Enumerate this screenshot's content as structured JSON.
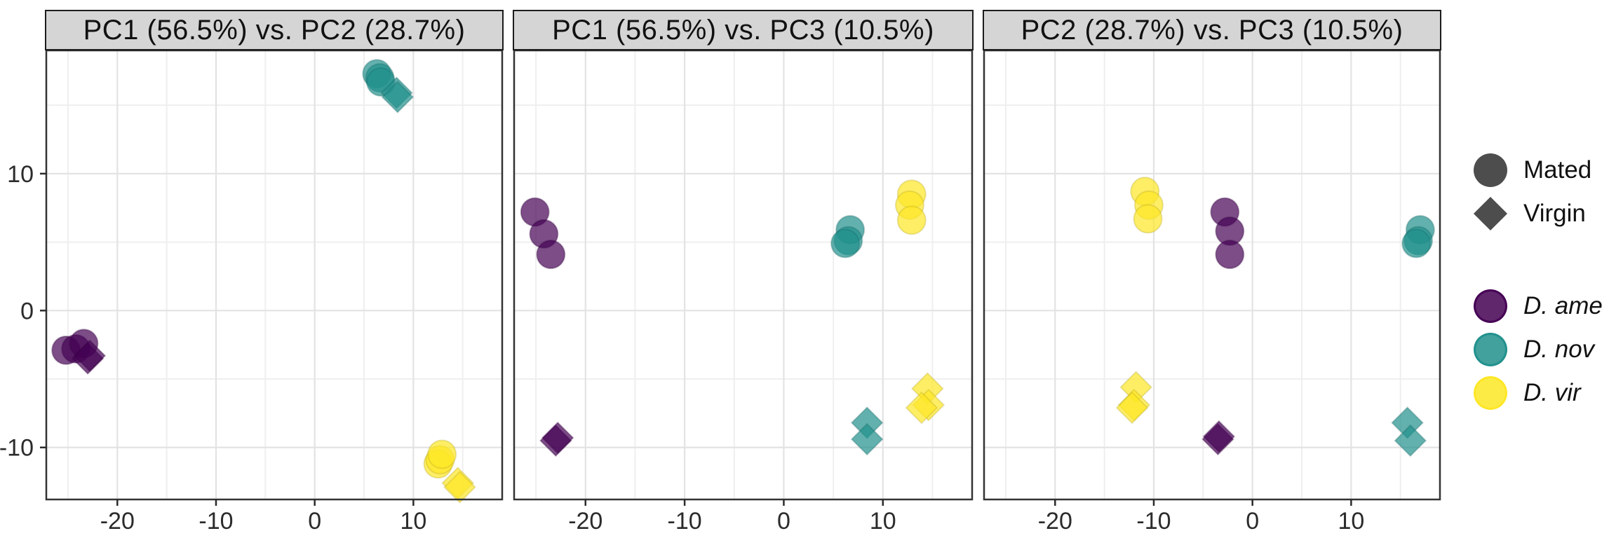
{
  "colors": {
    "ame": "#440154",
    "nov": "#21908C",
    "vir": "#FDE725",
    "legend_shape_gray": "#4d4d4d",
    "strip_background": "#d5d5d5",
    "gridline_major": "#e3e3e3",
    "gridline_minor": "#efefef",
    "panel_border": "#333333",
    "axis_text": "#2b2b2b"
  },
  "legend": {
    "shape_group": [
      {
        "label": "Mated",
        "shape": "circle"
      },
      {
        "label": "Virgin",
        "shape": "diamond"
      }
    ],
    "species_group": [
      {
        "label": "D. ame",
        "color_key": "ame"
      },
      {
        "label": "D. nov",
        "color_key": "nov"
      },
      {
        "label": "D. vir",
        "color_key": "vir"
      }
    ]
  },
  "chart_data": {
    "type": "scatter",
    "facetted": true,
    "grid": "major and minor, light gray on white",
    "legend_position": "right",
    "point_opacity": 0.7,
    "shape_by": "state (Mated = circle, Virgin = diamond)",
    "color_by": "species (viridis: D. ame purple, D. nov teal, D. vir yellow)",
    "x_ticks": [
      -20,
      -10,
      0,
      10
    ],
    "y_ticks": [
      -10,
      0,
      10
    ],
    "xlim": [
      -27.2,
      19.0
    ],
    "ylim": [
      -13.8,
      19.0
    ],
    "panels": [
      {
        "title": "PC1 (56.5%) vs. PC2 (28.7%)",
        "x_axis": "PC1",
        "y_axis": "PC2",
        "groups": [
          {
            "species": "D. ame",
            "state": "Mated",
            "shape": "circle",
            "color_key": "ame",
            "points": [
              [
                -25.2,
                -2.9
              ],
              [
                -24.2,
                -2.8
              ],
              [
                -23.4,
                -2.4
              ]
            ]
          },
          {
            "species": "D. ame",
            "state": "Virgin",
            "shape": "diamond",
            "color_key": "ame",
            "points": [
              [
                -23.0,
                -3.5
              ],
              [
                -22.8,
                -3.3
              ]
            ]
          },
          {
            "species": "D. nov",
            "state": "Mated",
            "shape": "circle",
            "color_key": "nov",
            "points": [
              [
                6.3,
                17.3
              ],
              [
                6.6,
                17.0
              ],
              [
                6.7,
                16.7
              ]
            ]
          },
          {
            "species": "D. nov",
            "state": "Virgin",
            "shape": "diamond",
            "color_key": "nov",
            "points": [
              [
                8.3,
                15.9
              ],
              [
                8.4,
                15.6
              ]
            ]
          },
          {
            "species": "D. vir",
            "state": "Mated",
            "shape": "circle",
            "color_key": "vir",
            "points": [
              [
                12.5,
                -11.2
              ],
              [
                12.7,
                -10.9
              ],
              [
                12.9,
                -10.5
              ]
            ]
          },
          {
            "species": "D. vir",
            "state": "Virgin",
            "shape": "diamond",
            "color_key": "vir",
            "points": [
              [
                14.5,
                -12.6
              ],
              [
                14.7,
                -12.9
              ]
            ]
          }
        ]
      },
      {
        "title": "PC1 (56.5%) vs. PC3 (10.5%)",
        "x_axis": "PC1",
        "y_axis": "PC3",
        "groups": [
          {
            "species": "D. ame",
            "state": "Mated",
            "shape": "circle",
            "color_key": "ame",
            "points": [
              [
                -25.1,
                7.2
              ],
              [
                -24.2,
                5.6
              ],
              [
                -23.5,
                4.1
              ]
            ]
          },
          {
            "species": "D. ame",
            "state": "Virgin",
            "shape": "diamond",
            "color_key": "ame",
            "points": [
              [
                -23.0,
                -9.5
              ],
              [
                -22.8,
                -9.3
              ]
            ]
          },
          {
            "species": "D. nov",
            "state": "Mated",
            "shape": "circle",
            "color_key": "nov",
            "points": [
              [
                6.7,
                5.9
              ],
              [
                6.5,
                5.1
              ],
              [
                6.2,
                4.9
              ]
            ]
          },
          {
            "species": "D. nov",
            "state": "Virgin",
            "shape": "diamond",
            "color_key": "nov",
            "points": [
              [
                8.4,
                -8.2
              ],
              [
                8.4,
                -9.4
              ]
            ]
          },
          {
            "species": "D. vir",
            "state": "Mated",
            "shape": "circle",
            "color_key": "vir",
            "points": [
              [
                12.9,
                8.5
              ],
              [
                12.7,
                7.7
              ],
              [
                12.9,
                6.6
              ]
            ]
          },
          {
            "species": "D. vir",
            "state": "Virgin",
            "shape": "diamond",
            "color_key": "vir",
            "points": [
              [
                14.5,
                -5.7
              ],
              [
                14.6,
                -6.9
              ],
              [
                13.9,
                -7.1
              ]
            ]
          }
        ]
      },
      {
        "title": "PC2 (28.7%) vs. PC3 (10.5%)",
        "x_axis": "PC2",
        "y_axis": "PC3",
        "groups": [
          {
            "species": "D. vir",
            "state": "Mated",
            "shape": "circle",
            "color_key": "vir",
            "points": [
              [
                -10.9,
                8.7
              ],
              [
                -10.5,
                7.7
              ],
              [
                -10.6,
                6.7
              ]
            ]
          },
          {
            "species": "D. vir",
            "state": "Virgin",
            "shape": "diamond",
            "color_key": "vir",
            "points": [
              [
                -11.8,
                -5.6
              ],
              [
                -12.0,
                -6.9
              ],
              [
                -12.2,
                -7.1
              ]
            ]
          },
          {
            "species": "D. ame",
            "state": "Mated",
            "shape": "circle",
            "color_key": "ame",
            "points": [
              [
                -2.8,
                7.2
              ],
              [
                -2.3,
                5.8
              ],
              [
                -2.3,
                4.1
              ]
            ]
          },
          {
            "species": "D. ame",
            "state": "Virgin",
            "shape": "diamond",
            "color_key": "ame",
            "points": [
              [
                -3.5,
                -9.4
              ],
              [
                -3.4,
                -9.2
              ]
            ]
          },
          {
            "species": "D. nov",
            "state": "Mated",
            "shape": "circle",
            "color_key": "nov",
            "points": [
              [
                17.0,
                5.9
              ],
              [
                16.8,
                5.1
              ],
              [
                16.6,
                4.9
              ]
            ]
          },
          {
            "species": "D. nov",
            "state": "Virgin",
            "shape": "diamond",
            "color_key": "nov",
            "points": [
              [
                15.7,
                -8.2
              ],
              [
                16.0,
                -9.5
              ]
            ]
          }
        ]
      }
    ]
  }
}
